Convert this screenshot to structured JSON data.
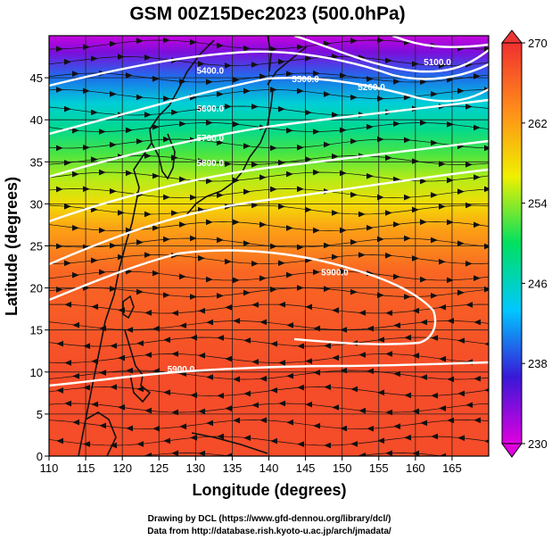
{
  "chart_data": {
    "type": "heatmap",
    "title": "GSM 00Z15Dec2023 (500.0hPa)",
    "xlabel": "Longitude (degrees)",
    "ylabel": "Latitude  (degrees)",
    "xlim": [
      110,
      170
    ],
    "ylim": [
      0,
      50
    ],
    "xticks": [
      110,
      115,
      120,
      125,
      130,
      135,
      140,
      145,
      150,
      155,
      160,
      165
    ],
    "yticks": [
      0,
      5,
      10,
      15,
      20,
      25,
      30,
      35,
      40,
      45
    ],
    "grid": true,
    "colorbar": {
      "ticks": [
        230,
        238,
        246,
        254,
        262,
        270
      ],
      "range": [
        230,
        270
      ],
      "colors": [
        "#e000e0",
        "#3818d8",
        "#00c8ff",
        "#00e060",
        "#f0f000",
        "#ff8c1a",
        "#f03030"
      ]
    },
    "temperature_bands": [
      {
        "lat": 0,
        "value": 268
      },
      {
        "lat": 10,
        "value": 268
      },
      {
        "lat": 16,
        "value": 267
      },
      {
        "lat": 22,
        "value": 266
      },
      {
        "lat": 27,
        "value": 262
      },
      {
        "lat": 30,
        "value": 258
      },
      {
        "lat": 33,
        "value": 255
      },
      {
        "lat": 36,
        "value": 252
      },
      {
        "lat": 39,
        "value": 248
      },
      {
        "lat": 42,
        "value": 245
      },
      {
        "lat": 45,
        "value": 240
      },
      {
        "lat": 48,
        "value": 234
      },
      {
        "lat": 50,
        "value": 231
      }
    ],
    "contours": [
      {
        "label": "5100.0",
        "label_lon": 163,
        "label_lat": 46.5
      },
      {
        "label": "5200.0",
        "label_lon": 154,
        "label_lat": 43.5
      },
      {
        "label": "5400.0",
        "label_lon": 132,
        "label_lat": 45.5
      },
      {
        "label": "5500.0",
        "label_lon": 145,
        "label_lat": 44.5
      },
      {
        "label": "5600.0",
        "label_lon": 132,
        "label_lat": 41
      },
      {
        "label": "5700.0",
        "label_lon": 132,
        "label_lat": 37.5
      },
      {
        "label": "5800.0",
        "label_lon": 132,
        "label_lat": 34.5
      },
      {
        "label": "5900.0",
        "label_lon": 149,
        "label_lat": 21.5
      },
      {
        "label": "5900.0",
        "label_lon": 128,
        "label_lat": 10
      }
    ]
  },
  "credits": {
    "line1": "Drawing by DCL (https://www.gfd-dennou.org/library/dcl/)",
    "line2": "Data from http://database.rish.kyoto-u.ac.jp/arch/jmadata/"
  }
}
